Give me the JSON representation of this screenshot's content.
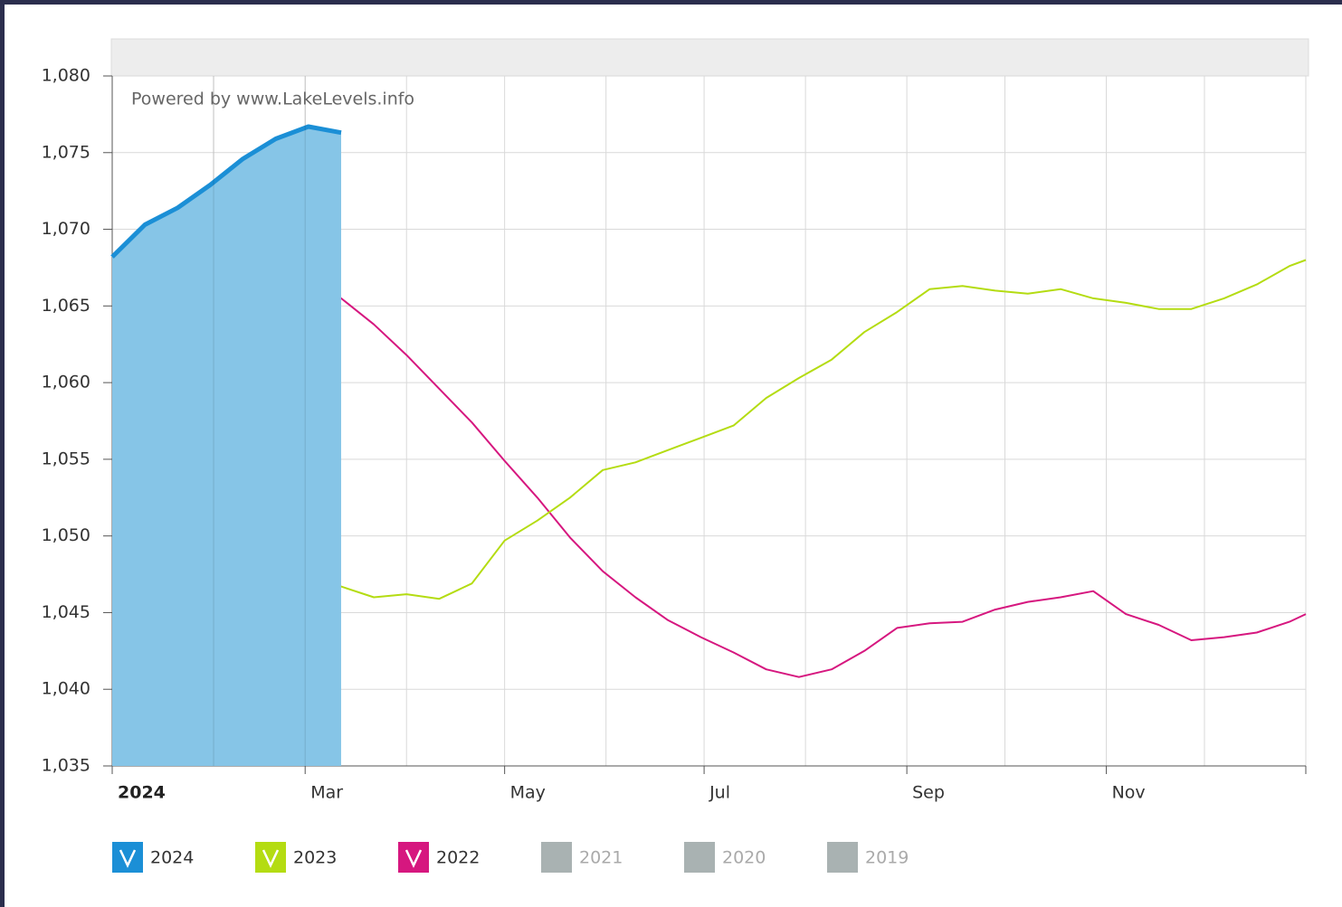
{
  "chart_data": {
    "type": "line",
    "attribution": "Powered by www.LakeLevels.info",
    "x": [
      0,
      10,
      20,
      30,
      40,
      50,
      60,
      70,
      80,
      90,
      100,
      110,
      120,
      130,
      140,
      150,
      160,
      170,
      180,
      190,
      200,
      210,
      220,
      230,
      240,
      250,
      260,
      270,
      280,
      290,
      300,
      310,
      320,
      330,
      340,
      350,
      360,
      365
    ],
    "xlim": [
      0,
      365
    ],
    "xticks": [
      {
        "value": 0,
        "label": "2024"
      },
      {
        "value": 31,
        "label": null
      },
      {
        "value": 59,
        "label": "Mar"
      },
      {
        "value": 90,
        "label": null
      },
      {
        "value": 120,
        "label": "May"
      },
      {
        "value": 151,
        "label": null
      },
      {
        "value": 181,
        "label": "Jul"
      },
      {
        "value": 212,
        "label": null
      },
      {
        "value": 243,
        "label": "Sep"
      },
      {
        "value": 273,
        "label": null
      },
      {
        "value": 304,
        "label": "Nov"
      },
      {
        "value": 334,
        "label": null
      },
      {
        "value": 365,
        "label": null
      }
    ],
    "ylim": [
      1035,
      1080
    ],
    "yticks": [
      {
        "value": 1035,
        "label": "1,035"
      },
      {
        "value": 1040,
        "label": "1,040"
      },
      {
        "value": 1045,
        "label": "1,045"
      },
      {
        "value": 1050,
        "label": "1,050"
      },
      {
        "value": 1055,
        "label": "1,055"
      },
      {
        "value": 1060,
        "label": "1,060"
      },
      {
        "value": 1065,
        "label": "1,065"
      },
      {
        "value": 1070,
        "label": "1,070"
      },
      {
        "value": 1075,
        "label": "1,075"
      },
      {
        "value": 1080,
        "label": "1,080"
      }
    ],
    "grid": true,
    "series": [
      {
        "name": "2024",
        "color": "#1b8fd6",
        "fill": "#86c5e7",
        "values": [
          1068.2,
          1070.3,
          1071.4,
          1072.9,
          1074.6,
          1075.9,
          1076.7,
          1076.3,
          null,
          null,
          null,
          null,
          null,
          null,
          null,
          null,
          null,
          null,
          null,
          null,
          null,
          null,
          null,
          null,
          null,
          null,
          null,
          null,
          null,
          null,
          null,
          null,
          null,
          null,
          null,
          null,
          null,
          null
        ]
      },
      {
        "name": "2023",
        "color": "#b4dc12",
        "values": [
          1045.0,
          1045.2,
          1045.7,
          1046.2,
          1046.9,
          1047.4,
          1047.6,
          1046.7,
          1046.0,
          1046.2,
          1045.9,
          1046.9,
          1049.7,
          1051.0,
          1052.5,
          1054.3,
          1054.8,
          1055.6,
          1056.4,
          1057.2,
          1059.0,
          1060.3,
          1061.5,
          1063.3,
          1064.6,
          1066.1,
          1066.3,
          1066.0,
          1065.8,
          1066.1,
          1065.5,
          1065.2,
          1064.8,
          1064.8,
          1065.5,
          1066.4,
          1067.6,
          1068.0
        ]
      },
      {
        "name": "2022",
        "color": "#d6177f",
        "values": [
          1066.4,
          1066.9,
          1067.3,
          1067.4,
          1067.1,
          1067.3,
          1067.0,
          1065.5,
          1063.8,
          1061.8,
          1059.6,
          1057.4,
          1054.9,
          1052.5,
          1049.9,
          1047.7,
          1046.0,
          1044.5,
          1043.4,
          1042.4,
          1041.3,
          1040.8,
          1041.3,
          1042.5,
          1044.0,
          1044.3,
          1044.4,
          1045.2,
          1045.7,
          1046.0,
          1046.4,
          1044.9,
          1044.2,
          1043.2,
          1043.4,
          1043.7,
          1044.4,
          1044.9
        ]
      }
    ],
    "hidden_series": [
      {
        "name": "2021",
        "color": "#a9b2b2"
      },
      {
        "name": "2020",
        "color": "#a9b2b2"
      },
      {
        "name": "2019",
        "color": "#a9b2b2"
      }
    ]
  }
}
